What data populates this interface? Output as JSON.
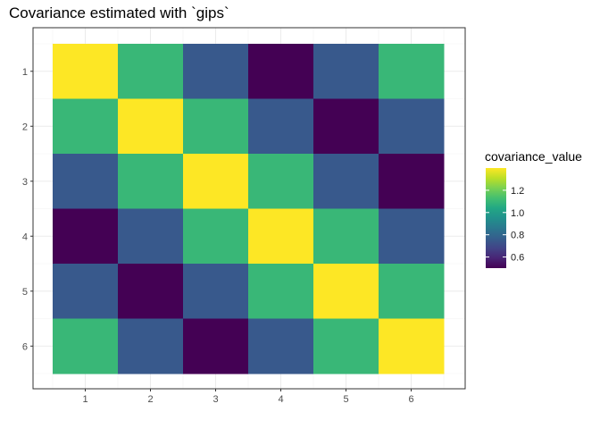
{
  "chart_data": {
    "type": "heatmap",
    "title": "Covariance estimated with `gips`",
    "x_categories": [
      "1",
      "2",
      "3",
      "4",
      "5",
      "6"
    ],
    "y_categories": [
      "1",
      "2",
      "3",
      "4",
      "5",
      "6"
    ],
    "values": [
      [
        1.4,
        1.1,
        0.75,
        0.5,
        0.75,
        1.1
      ],
      [
        1.1,
        1.4,
        1.1,
        0.75,
        0.5,
        0.75
      ],
      [
        0.75,
        1.1,
        1.4,
        1.1,
        0.75,
        0.5
      ],
      [
        0.5,
        0.75,
        1.1,
        1.4,
        1.1,
        0.75
      ],
      [
        0.75,
        0.5,
        0.75,
        1.1,
        1.4,
        1.1
      ],
      [
        1.1,
        0.75,
        0.5,
        0.75,
        1.1,
        1.4
      ]
    ],
    "legend": {
      "title": "covariance_value",
      "ticks": [
        "0.6",
        "0.8",
        "1.0",
        "1.2"
      ],
      "tick_values": [
        0.6,
        0.8,
        1.0,
        1.2
      ],
      "range": [
        0.5,
        1.4
      ],
      "placement": "right"
    },
    "colorscale": "viridis",
    "grid": true
  }
}
